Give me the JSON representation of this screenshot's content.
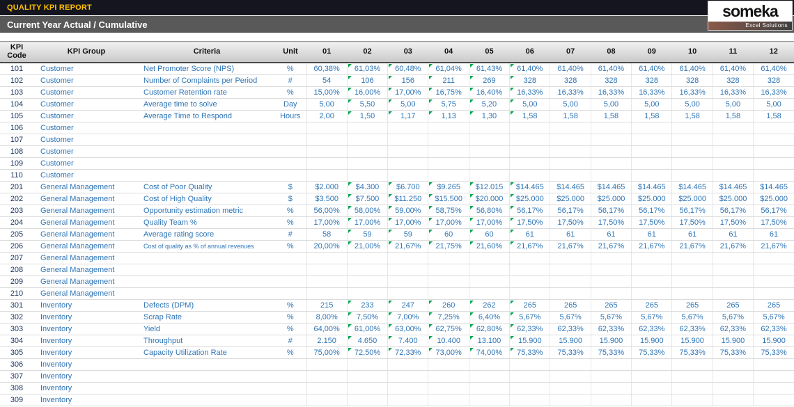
{
  "colors": {
    "accent_yellow": "#FFC000",
    "top_bar": "#15151F",
    "section_bar": "#595959",
    "value_blue": "#2E75B6",
    "code_navy": "#1F3864",
    "marker_green": "#00A550"
  },
  "header": {
    "report_title": "QUALITY KPI REPORT",
    "section_title": "Current Year Actual / Cumulative",
    "logo": {
      "name": "someka",
      "tagline": "Excel Solutions"
    }
  },
  "table": {
    "columns": {
      "code": "KPI Code",
      "group": "KPI Group",
      "criteria": "Criteria",
      "unit": "Unit"
    },
    "month_columns": [
      "01",
      "02",
      "03",
      "04",
      "05",
      "06",
      "07",
      "08",
      "09",
      "10",
      "11",
      "12"
    ],
    "marker_columns": [
      1,
      2,
      3,
      4,
      5
    ],
    "rows": [
      {
        "code": "101",
        "group": "Customer",
        "criteria": "Net Promoter Score (NPS)",
        "unit": "%",
        "markers": true,
        "values": [
          "60,38%",
          "61,03%",
          "60,48%",
          "61,04%",
          "61,43%",
          "61,40%",
          "61,40%",
          "61,40%",
          "61,40%",
          "61,40%",
          "61,40%",
          "61,40%"
        ]
      },
      {
        "code": "102",
        "group": "Customer",
        "criteria": "Number of Complaints per Period",
        "unit": "#",
        "markers": true,
        "values": [
          "54",
          "106",
          "156",
          "211",
          "269",
          "328",
          "328",
          "328",
          "328",
          "328",
          "328",
          "328"
        ]
      },
      {
        "code": "103",
        "group": "Customer",
        "criteria": "Customer Retention rate",
        "unit": "%",
        "markers": true,
        "values": [
          "15,00%",
          "16,00%",
          "17,00%",
          "16,75%",
          "16,40%",
          "16,33%",
          "16,33%",
          "16,33%",
          "16,33%",
          "16,33%",
          "16,33%",
          "16,33%"
        ]
      },
      {
        "code": "104",
        "group": "Customer",
        "criteria": "Average time to solve",
        "unit": "Day",
        "markers": true,
        "values": [
          "5,00",
          "5,50",
          "5,00",
          "5,75",
          "5,20",
          "5,00",
          "5,00",
          "5,00",
          "5,00",
          "5,00",
          "5,00",
          "5,00"
        ]
      },
      {
        "code": "105",
        "group": "Customer",
        "criteria": "Average Time to Respond",
        "unit": "Hours",
        "markers": true,
        "values": [
          "2,00",
          "1,50",
          "1,17",
          "1,13",
          "1,30",
          "1,58",
          "1,58",
          "1,58",
          "1,58",
          "1,58",
          "1,58",
          "1,58"
        ]
      },
      {
        "code": "106",
        "group": "Customer",
        "criteria": "",
        "unit": "",
        "markers": false,
        "values": []
      },
      {
        "code": "107",
        "group": "Customer",
        "criteria": "",
        "unit": "",
        "markers": false,
        "values": []
      },
      {
        "code": "108",
        "group": "Customer",
        "criteria": "",
        "unit": "",
        "markers": false,
        "values": []
      },
      {
        "code": "109",
        "group": "Customer",
        "criteria": "",
        "unit": "",
        "markers": false,
        "values": []
      },
      {
        "code": "110",
        "group": "Customer",
        "criteria": "",
        "unit": "",
        "markers": false,
        "values": []
      },
      {
        "code": "201",
        "group": "General Management",
        "criteria": "Cost of Poor Quality",
        "unit": "$",
        "markers": true,
        "values": [
          "$2.000",
          "$4.300",
          "$6.700",
          "$9.265",
          "$12.015",
          "$14.465",
          "$14.465",
          "$14.465",
          "$14.465",
          "$14.465",
          "$14.465",
          "$14.465"
        ]
      },
      {
        "code": "202",
        "group": "General Management",
        "criteria": "Cost of High Quality",
        "unit": "$",
        "markers": true,
        "values": [
          "$3.500",
          "$7.500",
          "$11.250",
          "$15.500",
          "$20.000",
          "$25.000",
          "$25.000",
          "$25.000",
          "$25.000",
          "$25.000",
          "$25.000",
          "$25.000"
        ]
      },
      {
        "code": "203",
        "group": "General Management",
        "criteria": "Opportunity estimation metric",
        "unit": "%",
        "markers": true,
        "values": [
          "56,00%",
          "58,00%",
          "59,00%",
          "58,75%",
          "56,80%",
          "56,17%",
          "56,17%",
          "56,17%",
          "56,17%",
          "56,17%",
          "56,17%",
          "56,17%"
        ]
      },
      {
        "code": "204",
        "group": "General Management",
        "criteria": "Quality Team %",
        "unit": "%",
        "markers": true,
        "values": [
          "17,00%",
          "17,00%",
          "17,00%",
          "17,00%",
          "17,00%",
          "17,50%",
          "17,50%",
          "17,50%",
          "17,50%",
          "17,50%",
          "17,50%",
          "17,50%"
        ]
      },
      {
        "code": "205",
        "group": "General Management",
        "criteria": "Average rating score",
        "unit": "#",
        "markers": true,
        "values": [
          "58",
          "59",
          "59",
          "60",
          "60",
          "61",
          "61",
          "61",
          "61",
          "61",
          "61",
          "61"
        ]
      },
      {
        "code": "206",
        "group": "General Management",
        "criteria": "Cost of quality as % of annual revenues",
        "unit": "%",
        "markers": true,
        "values": [
          "20,00%",
          "21,00%",
          "21,67%",
          "21,75%",
          "21,60%",
          "21,67%",
          "21,67%",
          "21,67%",
          "21,67%",
          "21,67%",
          "21,67%",
          "21,67%"
        ]
      },
      {
        "code": "207",
        "group": "General Management",
        "criteria": "",
        "unit": "",
        "markers": false,
        "values": []
      },
      {
        "code": "208",
        "group": "General Management",
        "criteria": "",
        "unit": "",
        "markers": false,
        "values": []
      },
      {
        "code": "209",
        "group": "General Management",
        "criteria": "",
        "unit": "",
        "markers": false,
        "values": []
      },
      {
        "code": "210",
        "group": "General Management",
        "criteria": "",
        "unit": "",
        "markers": false,
        "values": []
      },
      {
        "code": "301",
        "group": "Inventory",
        "criteria": "Defects (DPM)",
        "unit": "%",
        "markers": true,
        "values": [
          "215",
          "233",
          "247",
          "260",
          "262",
          "265",
          "265",
          "265",
          "265",
          "265",
          "265",
          "265"
        ]
      },
      {
        "code": "302",
        "group": "Inventory",
        "criteria": "Scrap Rate",
        "unit": "%",
        "markers": true,
        "values": [
          "8,00%",
          "7,50%",
          "7,00%",
          "7,25%",
          "6,40%",
          "5,67%",
          "5,67%",
          "5,67%",
          "5,67%",
          "5,67%",
          "5,67%",
          "5,67%"
        ]
      },
      {
        "code": "303",
        "group": "Inventory",
        "criteria": "Yield",
        "unit": "%",
        "markers": true,
        "values": [
          "64,00%",
          "61,00%",
          "63,00%",
          "62,75%",
          "62,80%",
          "62,33%",
          "62,33%",
          "62,33%",
          "62,33%",
          "62,33%",
          "62,33%",
          "62,33%"
        ]
      },
      {
        "code": "304",
        "group": "Inventory",
        "criteria": "Throughput",
        "unit": "#",
        "markers": true,
        "values": [
          "2.150",
          "4.650",
          "7.400",
          "10.400",
          "13.100",
          "15.900",
          "15.900",
          "15.900",
          "15.900",
          "15.900",
          "15.900",
          "15.900"
        ]
      },
      {
        "code": "305",
        "group": "Inventory",
        "criteria": "Capacity Utilization Rate",
        "unit": "%",
        "markers": true,
        "values": [
          "75,00%",
          "72,50%",
          "72,33%",
          "73,00%",
          "74,00%",
          "75,33%",
          "75,33%",
          "75,33%",
          "75,33%",
          "75,33%",
          "75,33%",
          "75,33%"
        ]
      },
      {
        "code": "306",
        "group": "Inventory",
        "criteria": "",
        "unit": "",
        "markers": false,
        "values": []
      },
      {
        "code": "307",
        "group": "Inventory",
        "criteria": "",
        "unit": "",
        "markers": false,
        "values": []
      },
      {
        "code": "308",
        "group": "Inventory",
        "criteria": "",
        "unit": "",
        "markers": false,
        "values": []
      },
      {
        "code": "309",
        "group": "Inventory",
        "criteria": "",
        "unit": "",
        "markers": false,
        "values": []
      }
    ]
  }
}
